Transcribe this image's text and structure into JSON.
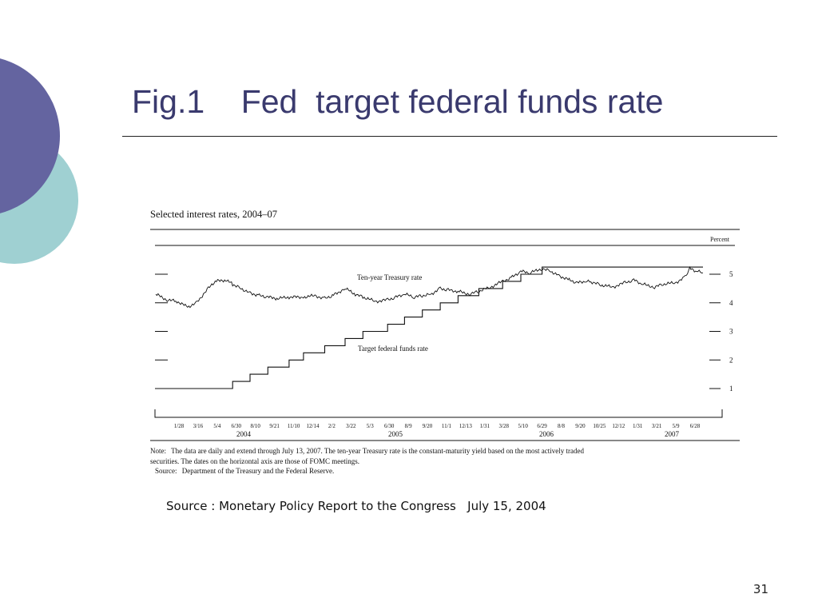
{
  "slide": {
    "title": "Fig.1    Fed  target federal funds rate",
    "source": "Source : Monetary Policy Report to the Congress   July 15, 2004",
    "page_number": "31"
  },
  "colors": {
    "title": "#3a3a6e",
    "circle_dark": "#6464a0",
    "circle_light": "#9fd0d2"
  },
  "chart_data": {
    "type": "line",
    "title": "Selected interest rates, 2004–07",
    "ylabel": "Percent",
    "ylim": [
      0.5,
      5.5
    ],
    "yticks": [
      "1",
      "2",
      "3",
      "4",
      "5"
    ],
    "x_tick_labels": [
      "1/28",
      "3/16",
      "5/4",
      "6/30",
      "8/10",
      "9/21",
      "11/10",
      "12/14",
      "2/2",
      "3/22",
      "5/3",
      "6/30",
      "8/9",
      "9/20",
      "11/1",
      "12/13",
      "1/31",
      "3/28",
      "5/10",
      "6/29",
      "8/8",
      "9/20",
      "10/25",
      "12/12",
      "1/31",
      "3/21",
      "5/9",
      "6/28"
    ],
    "year_labels": [
      "2004",
      "2005",
      "2006",
      "2007"
    ],
    "series": [
      {
        "name": "Ten-year Treasury rate",
        "x": [
          "2004-01-01",
          "2004-01-28",
          "2004-02-20",
          "2004-03-16",
          "2004-04-05",
          "2004-05-04",
          "2004-05-20",
          "2004-06-14",
          "2004-06-30",
          "2004-07-20",
          "2004-08-10",
          "2004-09-01",
          "2004-09-21",
          "2004-10-15",
          "2004-11-10",
          "2004-12-14",
          "2005-01-10",
          "2005-02-02",
          "2005-02-20",
          "2005-03-22",
          "2005-04-15",
          "2005-05-03",
          "2005-06-01",
          "2005-06-30",
          "2005-07-20",
          "2005-08-09",
          "2005-09-01",
          "2005-09-20",
          "2005-10-10",
          "2005-11-01",
          "2005-11-20",
          "2005-12-13",
          "2006-01-10",
          "2006-01-31",
          "2006-02-28",
          "2006-03-28",
          "2006-04-20",
          "2006-05-10",
          "2006-06-01",
          "2006-06-29",
          "2006-07-20",
          "2006-08-08",
          "2006-09-01",
          "2006-09-20",
          "2006-10-10",
          "2006-10-25",
          "2006-11-15",
          "2006-12-12",
          "2007-01-10",
          "2007-01-31",
          "2007-02-20",
          "2007-03-21",
          "2007-04-10",
          "2007-05-09",
          "2007-06-01",
          "2007-06-12",
          "2007-06-28",
          "2007-07-13"
        ],
        "values": [
          4.3,
          4.1,
          4.05,
          3.85,
          4.0,
          4.5,
          4.75,
          4.8,
          4.65,
          4.5,
          4.35,
          4.25,
          4.2,
          4.15,
          4.2,
          4.2,
          4.25,
          4.15,
          4.25,
          4.5,
          4.3,
          4.2,
          4.05,
          4.1,
          4.2,
          4.3,
          4.2,
          4.25,
          4.3,
          4.5,
          4.45,
          4.4,
          4.3,
          4.4,
          4.55,
          4.75,
          4.9,
          5.1,
          5.05,
          5.2,
          5.1,
          4.95,
          4.8,
          4.7,
          4.75,
          4.72,
          4.62,
          4.55,
          4.7,
          4.8,
          4.65,
          4.55,
          4.65,
          4.7,
          4.9,
          5.2,
          5.1,
          5.05
        ]
      },
      {
        "name": "Target federal funds rate",
        "type": "step",
        "x": [
          "2004-01-01",
          "2004-06-30",
          "2004-08-10",
          "2004-09-21",
          "2004-11-10",
          "2004-12-14",
          "2005-02-02",
          "2005-03-22",
          "2005-05-03",
          "2005-06-30",
          "2005-08-09",
          "2005-09-20",
          "2005-11-01",
          "2005-12-13",
          "2006-01-31",
          "2006-03-28",
          "2006-05-10",
          "2006-06-29",
          "2007-07-13"
        ],
        "values": [
          1.0,
          1.25,
          1.5,
          1.75,
          2.0,
          2.25,
          2.5,
          2.75,
          3.0,
          3.25,
          3.5,
          3.75,
          4.0,
          4.25,
          4.5,
          4.75,
          5.0,
          5.25,
          5.25
        ]
      }
    ],
    "note_label": "Note:",
    "note_text": "The data are daily and extend through July 13, 2007. The ten-year Treasury rate is the constant-maturity yield based on the most actively traded securities. The dates on the horizontal axis are those of FOMC meetings.",
    "source_label": "Source:",
    "source_text": "Department of the Treasury and the Federal Reserve."
  }
}
